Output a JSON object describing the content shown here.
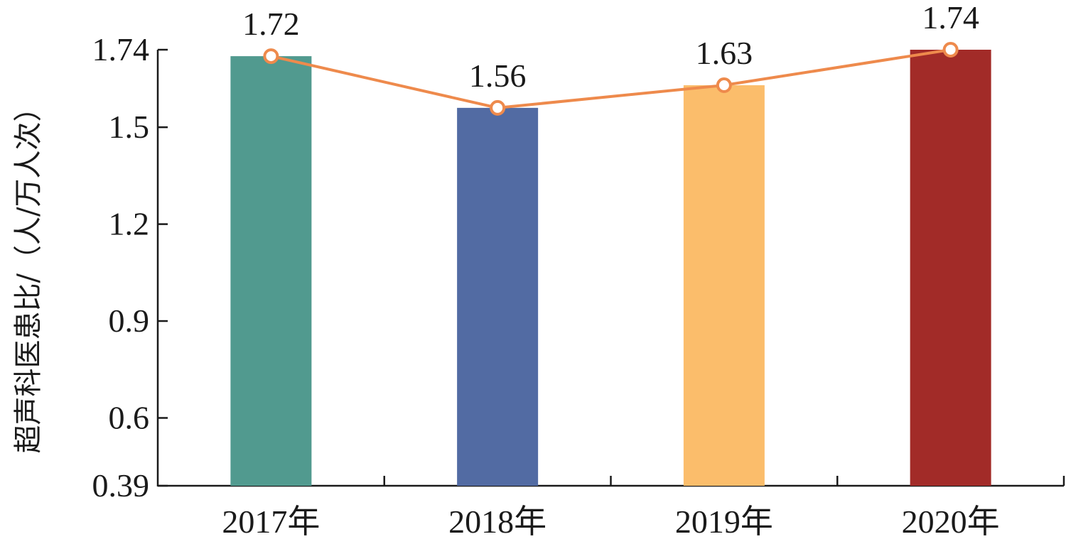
{
  "chart_data": {
    "type": "bar",
    "categories": [
      "2017年",
      "2018年",
      "2019年",
      "2020年"
    ],
    "values": [
      1.72,
      1.56,
      1.63,
      1.74
    ],
    "bar_colors": [
      "#519a8f",
      "#526ba3",
      "#fbbd6b",
      "#a22b28"
    ],
    "line": {
      "values": [
        1.72,
        1.56,
        1.63,
        1.74
      ],
      "color": "#ee8a4c",
      "labels": [
        "1.72",
        "1.56",
        "1.63",
        "1.74"
      ]
    },
    "ylabel": "超声科医患比/（人/万人次）",
    "xlabel": "",
    "ylim": [
      0.39,
      1.74
    ],
    "yticks": [
      0.39,
      0.6,
      0.9,
      1.2,
      1.5,
      1.74
    ],
    "ytick_labels": [
      "0.39",
      "0.6",
      "0.9",
      "1.2",
      "1.5",
      "1.74"
    ],
    "grid": false,
    "legend": "none"
  }
}
